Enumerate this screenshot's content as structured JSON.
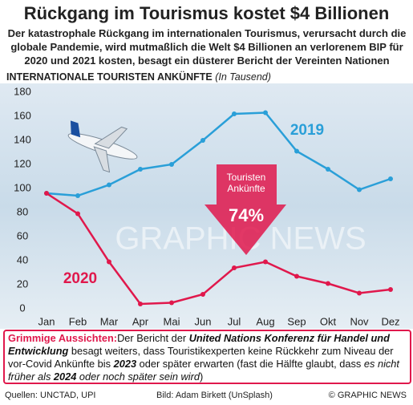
{
  "chart_data": {
    "type": "line",
    "title": "Rückgang im Tourismus kostet $4 Billionen",
    "subtitle": "Der katastrophale Rückgang im internationalen Tourismus, verursacht durch die globale Pandemie, wird mutmaßlich die Welt $4 Billionen an verlorenem BIP für 2020 und 2021 kosten, besagt ein düsterer Bericht der Vereinten Nationen",
    "y_label": "INTERNATIONALE TOURISTEN ANKÜNFTE",
    "y_unit": "(In Tausend)",
    "categories": [
      "Jan",
      "Feb",
      "Mar",
      "Apr",
      "Mai",
      "Jun",
      "Jul",
      "Aug",
      "Sep",
      "Okt",
      "Nov",
      "Dez"
    ],
    "series": [
      {
        "name": "2019",
        "color": "#2a9fd8",
        "values": [
          96,
          94,
          103,
          116,
          120,
          140,
          162,
          163,
          131,
          116,
          99,
          108
        ]
      },
      {
        "name": "2020",
        "color": "#e0184c",
        "values": [
          96,
          79,
          39,
          4,
          5,
          12,
          34,
          39,
          27,
          21,
          13,
          16
        ]
      }
    ],
    "ylim": [
      0,
      180
    ],
    "yticks": [
      0,
      20,
      40,
      60,
      80,
      100,
      120,
      140,
      160,
      180
    ],
    "grid": false,
    "annotation": [
      "Touristen",
      "Ankünfte"
    ],
    "annotation_value": "74%",
    "watermark": "GRAPHIC NEWS",
    "note": [
      {
        "text": "Grimmige Aussichten:",
        "bold": true,
        "italic": false,
        "color": "#e0184c"
      },
      {
        "text": "Der Bericht der ",
        "bold": false,
        "italic": false
      },
      {
        "text": "United Nations Konferenz für Handel und Entwicklung",
        "bold": true,
        "italic": true
      },
      {
        "text": " besagt weiters, dass Touristikexperten keine Rückkehr zum Niveau der vor-Covid Ankünfte bis ",
        "bold": false,
        "italic": false
      },
      {
        "text": "2023",
        "bold": true,
        "italic": true
      },
      {
        "text": " oder später erwarten (fast die Hälfte glaubt, dass ",
        "bold": false,
        "italic": false
      },
      {
        "text": "es nicht früher als ",
        "bold": false,
        "italic": true
      },
      {
        "text": "2024",
        "bold": true,
        "italic": true
      },
      {
        "text": " oder noch später sein wird",
        "bold": false,
        "italic": true
      },
      {
        "text": ")",
        "bold": false,
        "italic": false
      }
    ],
    "source": "Quellen: UNCTAD, UPI",
    "credit": "Bild: Adam Birkett (UnSplash)",
    "copyright": "© GRAPHIC NEWS"
  }
}
